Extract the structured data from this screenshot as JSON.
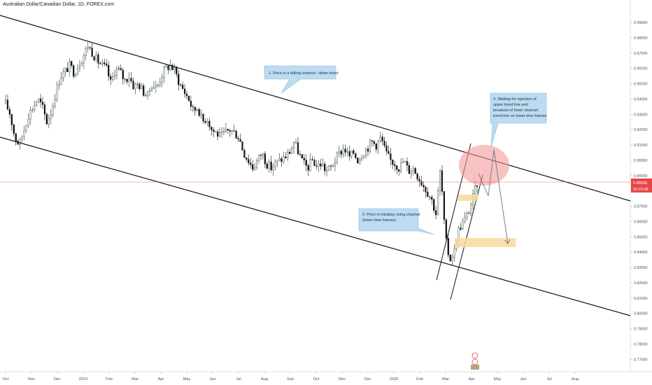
{
  "colors": {
    "background": "#ffffff",
    "plot_background": "#ffffff",
    "candle_up": "#1f3b2c",
    "candle_down": "#111111",
    "trendline": "#111111",
    "price_line": "#e84646",
    "callout_fill": "#bcdcf2",
    "callout_stroke": "#8fb9dc",
    "zone_fill": "#f8d99a",
    "circle_fill": "#f39a9a",
    "arrow": "#6b7685"
  },
  "chart_data": {
    "type": "candlestick",
    "title": "Australian Dollar/Canadian Dollar, 1D, FOREX.com",
    "y_ticks": [
      "0.99000",
      "0.98000",
      "0.97000",
      "0.96000",
      "0.95000",
      "0.94000",
      "0.93000",
      "0.92000",
      "0.91000",
      "0.90000",
      "0.89000",
      "0.88000",
      "0.87000",
      "0.86000",
      "0.85000",
      "0.84000",
      "0.83000",
      "0.82000",
      "0.81000",
      "0.80000",
      "0.79000",
      "0.78000",
      "0.77000"
    ],
    "ylim": [
      0.7665,
      0.9955
    ],
    "x_ticks": [
      "Oct",
      "Nov",
      "Dec",
      "2019",
      "Feb",
      "Mar",
      "Apr",
      "May",
      "Jun",
      "Jul",
      "Aug",
      "Sep",
      "Oct",
      "Nov",
      "Dec",
      "2020",
      "Feb",
      "Mar",
      "Apr",
      "May",
      "Jun",
      "Jul",
      "Aug"
    ],
    "current_price": "0.88506",
    "countdown": "20:23:38",
    "annotations": [
      {
        "id": "falling-channel",
        "text": [
          "1. Price in a falling channel - down trend"
        ]
      },
      {
        "id": "rising-channel",
        "text": [
          "2. Price in intraday rising channel",
          "(lower time frames)"
        ]
      },
      {
        "id": "waiting",
        "text": [
          "3. Waiting for rejection of",
          "upper trend line and",
          "breakout of lower channel",
          "trend line on lower time frames"
        ]
      }
    ],
    "price_points": [
      [
        0.937
      ],
      [
        0.93
      ],
      [
        0.915
      ],
      [
        0.91
      ],
      [
        0.92
      ],
      [
        0.93
      ],
      [
        0.935
      ],
      [
        0.94
      ],
      [
        0.935
      ],
      [
        0.925
      ],
      [
        0.932
      ],
      [
        0.945
      ],
      [
        0.955
      ],
      [
        0.958
      ],
      [
        0.962
      ],
      [
        0.957
      ],
      [
        0.963
      ],
      [
        0.968
      ],
      [
        0.975
      ],
      [
        0.97
      ],
      [
        0.965
      ],
      [
        0.962
      ],
      [
        0.96
      ],
      [
        0.95
      ],
      [
        0.96
      ],
      [
        0.958
      ],
      [
        0.952
      ],
      [
        0.955
      ],
      [
        0.948
      ],
      [
        0.95
      ],
      [
        0.945
      ],
      [
        0.942
      ],
      [
        0.95
      ],
      [
        0.947
      ],
      [
        0.955
      ],
      [
        0.96
      ],
      [
        0.962
      ],
      [
        0.958
      ],
      [
        0.95
      ],
      [
        0.945
      ],
      [
        0.94
      ],
      [
        0.932
      ],
      [
        0.935
      ],
      [
        0.925
      ],
      [
        0.928
      ],
      [
        0.92
      ],
      [
        0.918
      ],
      [
        0.915
      ],
      [
        0.918
      ],
      [
        0.92
      ],
      [
        0.918
      ],
      [
        0.915
      ],
      [
        0.905
      ],
      [
        0.9
      ],
      [
        0.895
      ],
      [
        0.9
      ],
      [
        0.905
      ],
      [
        0.898
      ],
      [
        0.895
      ],
      [
        0.898
      ],
      [
        0.9
      ],
      [
        0.902
      ],
      [
        0.905
      ],
      [
        0.912
      ],
      [
        0.905
      ],
      [
        0.898
      ],
      [
        0.895
      ],
      [
        0.9
      ],
      [
        0.896
      ],
      [
        0.898
      ],
      [
        0.893
      ],
      [
        0.895
      ],
      [
        0.9
      ],
      [
        0.905
      ],
      [
        0.908
      ],
      [
        0.902
      ],
      [
        0.905
      ],
      [
        0.9
      ],
      [
        0.905
      ],
      [
        0.908
      ],
      [
        0.912
      ],
      [
        0.91
      ],
      [
        0.915
      ],
      [
        0.905
      ],
      [
        0.9
      ],
      [
        0.898
      ],
      [
        0.895
      ],
      [
        0.9
      ],
      [
        0.893
      ],
      [
        0.895
      ],
      [
        0.89
      ],
      [
        0.885
      ],
      [
        0.88
      ],
      [
        0.875
      ],
      [
        0.865
      ],
      [
        0.895
      ],
      [
        0.85
      ],
      [
        0.835
      ],
      [
        0.84
      ],
      [
        0.855
      ],
      [
        0.86
      ],
      [
        0.865
      ],
      [
        0.875
      ],
      [
        0.885
      ]
    ]
  }
}
